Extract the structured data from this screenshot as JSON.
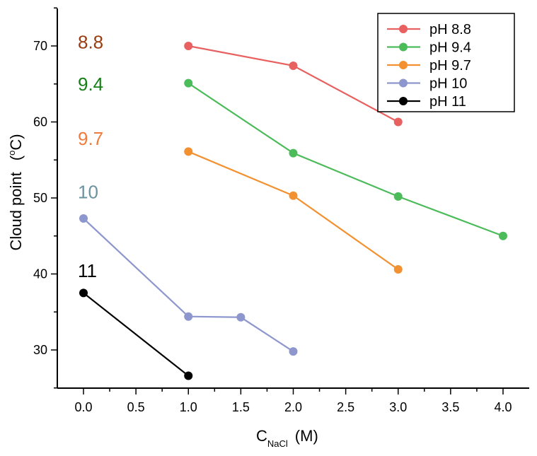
{
  "chart_data": {
    "type": "line",
    "xlabel_main": "C",
    "xlabel_sub": "NaCl",
    "xlabel_unit": "(M)",
    "ylabel_text": "Cloud point",
    "ylabel_unit_open": "(",
    "ylabel_unit_sup": "o",
    "ylabel_unit_close": "C)",
    "xlim": [
      -0.25,
      4.25
    ],
    "ylim": [
      25,
      75
    ],
    "xticks": [
      0.0,
      0.5,
      1.0,
      1.5,
      2.0,
      2.5,
      3.0,
      3.5,
      4.0
    ],
    "xtick_labels": [
      "0.0",
      "0.5",
      "1.0",
      "1.5",
      "2.0",
      "2.5",
      "3.0",
      "3.5",
      "4.0"
    ],
    "yticks": [
      30,
      40,
      50,
      60,
      70
    ],
    "ytick_labels": [
      "30",
      "40",
      "50",
      "60",
      "70"
    ],
    "legend_position": "top-right",
    "series": [
      {
        "name": "pH 8.8",
        "color": "#e8605f",
        "x": [
          1,
          2,
          3
        ],
        "y": [
          70,
          67.4,
          60
        ]
      },
      {
        "name": "pH 9.4",
        "color": "#4cbb5a",
        "x": [
          1,
          2,
          3,
          4
        ],
        "y": [
          65.1,
          55.9,
          50.2,
          45
        ]
      },
      {
        "name": "pH 9.7",
        "color": "#f39131",
        "x": [
          1,
          2,
          3
        ],
        "y": [
          56.1,
          50.3,
          40.6
        ]
      },
      {
        "name": "pH 10",
        "color": "#8e97cd",
        "x": [
          0,
          1,
          1.5,
          2
        ],
        "y": [
          47.3,
          34.4,
          34.3,
          29.8
        ]
      },
      {
        "name": "pH 11",
        "color": "#000000",
        "x": [
          0,
          1
        ],
        "y": [
          37.5,
          26.6
        ]
      }
    ],
    "annotations": [
      {
        "text": "8.8",
        "color": "#993d10",
        "x": 0,
        "y": 70.5
      },
      {
        "text": "9.4",
        "color": "#168016",
        "x": 0,
        "y": 65
      },
      {
        "text": "9.7",
        "color": "#f07b3c",
        "x": 0,
        "y": 57.8
      },
      {
        "text": "10",
        "color": "#6a939f",
        "x": 0,
        "y": 50.8
      },
      {
        "text": "11",
        "color": "#000000",
        "x": 0,
        "y": 40.4
      }
    ]
  }
}
